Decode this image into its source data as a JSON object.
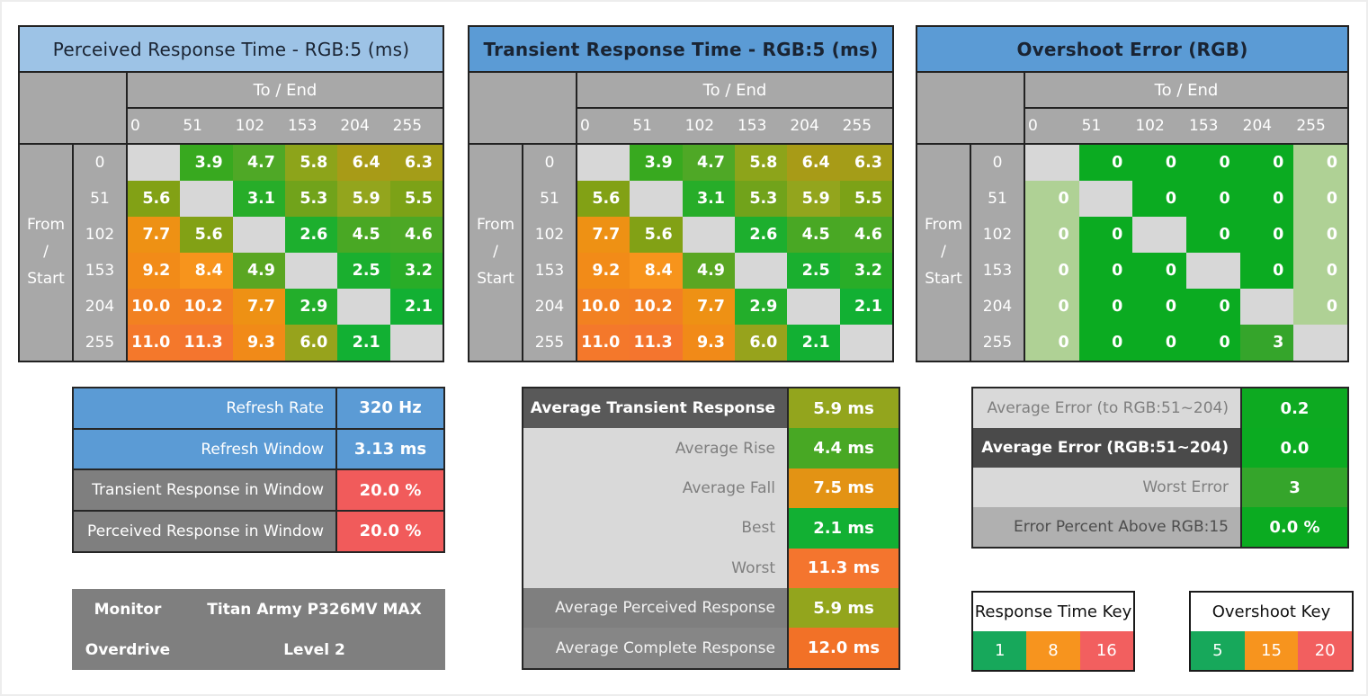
{
  "matrix_labels": {
    "row_header_lines": [
      "From",
      "/",
      "Start"
    ],
    "col_header": "To / End",
    "levels": [
      "0",
      "51",
      "102",
      "153",
      "204",
      "255"
    ]
  },
  "chart_data": [
    {
      "type": "heatmap",
      "title": "Perceived Response Time - RGB:5 (ms)",
      "title_style": {
        "bg": "#9DC3E6",
        "bold": false
      },
      "row_axis_label": "From / Start",
      "col_axis_label": "To / End",
      "x": [
        0,
        51,
        102,
        153,
        204,
        255
      ],
      "y": [
        0,
        51,
        102,
        153,
        204,
        255
      ],
      "units": "ms",
      "scale": "response_time",
      "decimals": 1,
      "values": [
        [
          null,
          3.9,
          4.7,
          5.8,
          6.4,
          6.3
        ],
        [
          5.6,
          null,
          3.1,
          5.3,
          5.9,
          5.5
        ],
        [
          7.7,
          5.6,
          null,
          2.6,
          4.5,
          4.6
        ],
        [
          9.2,
          8.4,
          4.9,
          null,
          2.5,
          3.2
        ],
        [
          10.0,
          10.2,
          7.7,
          2.9,
          null,
          2.1
        ],
        [
          11.0,
          11.3,
          9.3,
          6.0,
          2.1,
          null
        ]
      ]
    },
    {
      "type": "heatmap",
      "title": "Transient Response Time - RGB:5 (ms)",
      "title_style": {
        "bg": "#5B9BD5",
        "bold": true
      },
      "row_axis_label": "From / Start",
      "col_axis_label": "To / End",
      "x": [
        0,
        51,
        102,
        153,
        204,
        255
      ],
      "y": [
        0,
        51,
        102,
        153,
        204,
        255
      ],
      "units": "ms",
      "scale": "response_time",
      "decimals": 1,
      "values": [
        [
          null,
          3.9,
          4.7,
          5.8,
          6.4,
          6.3
        ],
        [
          5.6,
          null,
          3.1,
          5.3,
          5.9,
          5.5
        ],
        [
          7.7,
          5.6,
          null,
          2.6,
          4.5,
          4.6
        ],
        [
          9.2,
          8.4,
          4.9,
          null,
          2.5,
          3.2
        ],
        [
          10.0,
          10.2,
          7.7,
          2.9,
          null,
          2.1
        ],
        [
          11.0,
          11.3,
          9.3,
          6.0,
          2.1,
          null
        ]
      ]
    },
    {
      "type": "heatmap",
      "title": "Overshoot Error (RGB)",
      "title_style": {
        "bg": "#5B9BD5",
        "bold": true
      },
      "row_axis_label": "From / Start",
      "col_axis_label": "To / End",
      "x": [
        0,
        51,
        102,
        153,
        204,
        255
      ],
      "y": [
        0,
        51,
        102,
        153,
        204,
        255
      ],
      "units": "RGB",
      "scale": "overshoot",
      "decimals": 0,
      "muted_columns": [
        0,
        5
      ],
      "values": [
        [
          null,
          0,
          0,
          0,
          0,
          0
        ],
        [
          0,
          null,
          0,
          0,
          0,
          0
        ],
        [
          0,
          0,
          null,
          0,
          0,
          0
        ],
        [
          0,
          0,
          0,
          null,
          0,
          0
        ],
        [
          0,
          0,
          0,
          0,
          null,
          0
        ],
        [
          0,
          0,
          0,
          0,
          3,
          null
        ]
      ]
    }
  ],
  "scales": {
    "response_time": {
      "stops": [
        [
          1,
          "#0CB43A"
        ],
        [
          2.1,
          "#12B033"
        ],
        [
          3.1,
          "#27AD29"
        ],
        [
          3.9,
          "#38A91F"
        ],
        [
          4.7,
          "#4FA826"
        ],
        [
          5.6,
          "#82A115"
        ],
        [
          5.9,
          "#93A51D"
        ],
        [
          6.4,
          "#A89B17"
        ],
        [
          7.7,
          "#EE9114"
        ],
        [
          8.4,
          "#F7941C"
        ],
        [
          9.3,
          "#F18A18"
        ],
        [
          10.1,
          "#F28022"
        ],
        [
          11.3,
          "#F4752E"
        ],
        [
          16,
          "#F25050"
        ]
      ]
    },
    "overshoot": {
      "stops": [
        [
          0,
          "#0BAB21"
        ],
        [
          3,
          "#35A52B"
        ],
        [
          15,
          "#F7941C"
        ],
        [
          20,
          "#F25F5F"
        ]
      ],
      "muted_color": "#AFD195"
    }
  },
  "summaries": {
    "left": {
      "rows": [
        {
          "label": "Refresh Rate",
          "value": "320 Hz",
          "label_bg": "#5B9BD5",
          "label_color": "#FFFFFF",
          "value_bg": "#5B9BD5"
        },
        {
          "label": "Refresh Window",
          "value": "3.13 ms",
          "label_bg": "#5B9BD5",
          "label_color": "#FFFFFF",
          "value_bg": "#5B9BD5"
        },
        {
          "label": "Transient Response in Window",
          "value": "20.0 %",
          "label_bg": "#7F7F7F",
          "label_color": "#FFFFFF",
          "value_bg": "#F15B5B"
        },
        {
          "label": "Perceived Response in Window",
          "value": "20.0 %",
          "label_bg": "#7F7F7F",
          "label_color": "#FFFFFF",
          "value_bg": "#F15B5B"
        }
      ]
    },
    "middle": {
      "rows": [
        {
          "label": "Average Transient Response",
          "value": "5.9 ms",
          "label_bg": "#595959",
          "label_color": "#FFFFFF",
          "label_bold": true,
          "value_bg": "#93A51D"
        },
        {
          "label": "Average Rise",
          "value": "4.4 ms",
          "label_bg": "#D9D9D9",
          "label_color": "#7F7F7F",
          "value_bg": "#48A824"
        },
        {
          "label": "Average Fall",
          "value": "7.5 ms",
          "label_bg": "#D9D9D9",
          "label_color": "#7F7F7F",
          "value_bg": "#E39314"
        },
        {
          "label": "Best",
          "value": "2.1 ms",
          "label_bg": "#D9D9D9",
          "label_color": "#7F7F7F",
          "value_bg": "#12B033"
        },
        {
          "label": "Worst",
          "value": "11.3 ms",
          "label_bg": "#D9D9D9",
          "label_color": "#7F7F7F",
          "value_bg": "#F4752E"
        },
        {
          "label": "Average Perceived Response",
          "value": "5.9 ms",
          "label_bg": "#7F7F7F",
          "label_color": "#F2F2F2",
          "value_bg": "#93A51D"
        },
        {
          "label": "Average Complete Response",
          "value": "12.0 ms",
          "label_bg": "#868686",
          "label_color": "#F2F2F2",
          "value_bg": "#F27127"
        }
      ]
    },
    "right": {
      "rows": [
        {
          "label": "Average Error (to RGB:51~204)",
          "value": "0.2",
          "label_bg": "#D9D9D9",
          "label_color": "#7F7F7F",
          "value_bg": "#0DAA21"
        },
        {
          "label": "Average Error (RGB:51~204)",
          "value": "0.0",
          "label_bg": "#4A4A4A",
          "label_color": "#FFFFFF",
          "label_bold": true,
          "value_bg": "#0BAB21"
        },
        {
          "label": "Worst Error",
          "value": "3",
          "label_bg": "#D9D9D9",
          "label_color": "#7F7F7F",
          "value_bg": "#35A52B"
        },
        {
          "label": "Error Percent Above RGB:15",
          "value": "0.0 %",
          "label_bg": "#B0B0B0",
          "label_color": "#4D4D4D",
          "value_bg": "#0BAB21"
        }
      ]
    },
    "monitor": {
      "bg": "#7F7F7F",
      "rows": [
        {
          "label": "Monitor",
          "value": "Titan Army P326MV MAX"
        },
        {
          "label": "Overdrive",
          "value": "Level 2"
        }
      ]
    },
    "keys": [
      {
        "title": "Response Time Key",
        "cells": [
          {
            "label": "1",
            "bg": "#17A85B"
          },
          {
            "label": "8",
            "bg": "#F7941E"
          },
          {
            "label": "16",
            "bg": "#F25F5F"
          }
        ]
      },
      {
        "title": "Overshoot Key",
        "cells": [
          {
            "label": "5",
            "bg": "#17A85B"
          },
          {
            "label": "15",
            "bg": "#F7941E"
          },
          {
            "label": "20",
            "bg": "#F25F5F"
          }
        ]
      }
    ]
  }
}
